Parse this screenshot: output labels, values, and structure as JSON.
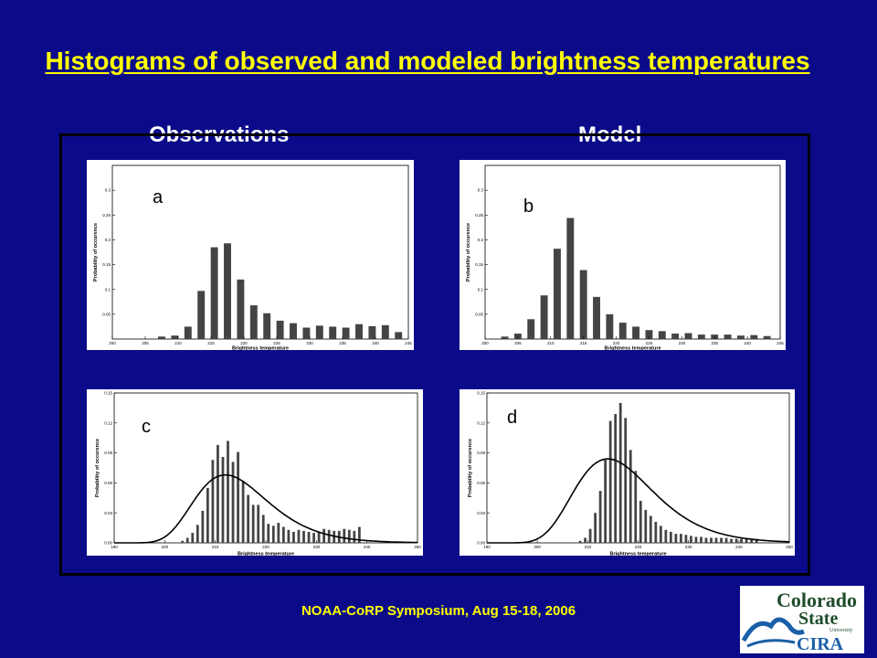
{
  "slide": {
    "title": "Histograms of observed and modeled brightness temperatures",
    "col_left": "Observations",
    "col_right": "Model",
    "footer": "NOAA-CoRP Symposium, Aug 15-18, 2006",
    "colors": {
      "background": "#0b0b8a",
      "title": "#ffff00",
      "bar": "#444444"
    }
  },
  "logo": {
    "line1": "Colorado",
    "line2": "State",
    "line3": "University",
    "line4": "CIRA"
  },
  "chart_data": [
    {
      "type": "bar",
      "label": "a",
      "xlabel": "Brightness temperature",
      "ylabel": "Probability of occurence",
      "xlim": [
        200,
        245
      ],
      "ylim": [
        0,
        0.35
      ],
      "xticks": [
        200,
        205,
        210,
        215,
        220,
        225,
        230,
        235,
        240,
        245
      ],
      "yticks": [
        0.05,
        0.1,
        0.15,
        0.2,
        0.25,
        0.3
      ],
      "x": [
        207.5,
        209.5,
        211.5,
        213.5,
        215.5,
        217.5,
        219.5,
        221.5,
        223.5,
        225.5,
        227.5,
        229.5,
        231.5,
        233.5,
        235.5,
        237.5,
        239.5,
        241.5,
        243.5
      ],
      "values": [
        0.005,
        0.007,
        0.025,
        0.097,
        0.185,
        0.193,
        0.12,
        0.068,
        0.052,
        0.037,
        0.032,
        0.023,
        0.027,
        0.025,
        0.023,
        0.03,
        0.026,
        0.028,
        0.014
      ]
    },
    {
      "type": "bar",
      "label": "b",
      "xlabel": "Brightness temperature",
      "ylabel": "Probability of occurence",
      "xlim": [
        200,
        245
      ],
      "ylim": [
        0,
        0.35
      ],
      "xticks": [
        200,
        205,
        210,
        215,
        220,
        225,
        230,
        235,
        240,
        245
      ],
      "yticks": [
        0.05,
        0.1,
        0.15,
        0.2,
        0.25,
        0.3
      ],
      "x": [
        203,
        205,
        207,
        209,
        211,
        213,
        215,
        217,
        219,
        221,
        223,
        225,
        227,
        229,
        231,
        233,
        235,
        237,
        239,
        241,
        243
      ],
      "values": [
        0.005,
        0.011,
        0.04,
        0.088,
        0.182,
        0.244,
        0.139,
        0.085,
        0.05,
        0.033,
        0.025,
        0.018,
        0.016,
        0.011,
        0.012,
        0.009,
        0.009,
        0.009,
        0.007,
        0.008,
        0.006
      ]
    },
    {
      "type": "bar",
      "label": "c",
      "xlabel": "Brightness temperature",
      "ylabel": "Probability of occurence",
      "xlim": [
        190,
        250
      ],
      "ylim": [
        0,
        0.15
      ],
      "xticks": [
        190,
        200,
        210,
        220,
        230,
        240,
        250
      ],
      "yticks": [
        0.0,
        0.03,
        0.06,
        0.09,
        0.12,
        0.15
      ],
      "x": [
        203.5,
        204.5,
        205.5,
        206.5,
        207.5,
        208.5,
        209.5,
        210.5,
        211.5,
        212.5,
        213.5,
        214.5,
        215.5,
        216.5,
        217.5,
        218.5,
        219.5,
        220.5,
        221.5,
        222.5,
        223.5,
        224.5,
        225.5,
        226.5,
        227.5,
        228.5,
        229.5,
        230.5,
        231.5,
        232.5,
        233.5,
        234.5,
        235.5,
        236.5,
        237.5,
        238.5
      ],
      "values": [
        0.002,
        0.005,
        0.01,
        0.018,
        0.032,
        0.055,
        0.083,
        0.098,
        0.086,
        0.102,
        0.081,
        0.091,
        0.062,
        0.048,
        0.038,
        0.038,
        0.028,
        0.019,
        0.017,
        0.02,
        0.016,
        0.013,
        0.011,
        0.013,
        0.012,
        0.011,
        0.01,
        0.011,
        0.014,
        0.013,
        0.012,
        0.012,
        0.014,
        0.013,
        0.012,
        0.016
      ],
      "curve": {
        "type": "lognormal",
        "peak_x": 212,
        "peak_y": 0.068
      }
    },
    {
      "type": "bar",
      "label": "d",
      "xlabel": "Brightness temperature",
      "ylabel": "Probability of occurence",
      "xlim": [
        190,
        250
      ],
      "ylim": [
        0,
        0.15
      ],
      "xticks": [
        190,
        200,
        210,
        220,
        230,
        240,
        250
      ],
      "yticks": [
        0.0,
        0.03,
        0.06,
        0.09,
        0.12,
        0.15
      ],
      "x": [
        208.5,
        209.5,
        210.5,
        211.5,
        212.5,
        213.5,
        214.5,
        215.5,
        216.5,
        217.5,
        218.5,
        219.5,
        220.5,
        221.5,
        222.5,
        223.5,
        224.5,
        225.5,
        226.5,
        227.5,
        228.5,
        229.5,
        230.5,
        231.5,
        232.5,
        233.5,
        234.5,
        235.5,
        236.5,
        237.5,
        238.5,
        239.5,
        240.5,
        241.5,
        242.5,
        243.5
      ],
      "values": [
        0.002,
        0.005,
        0.014,
        0.03,
        0.052,
        0.083,
        0.122,
        0.129,
        0.14,
        0.125,
        0.093,
        0.072,
        0.042,
        0.033,
        0.027,
        0.021,
        0.017,
        0.013,
        0.011,
        0.009,
        0.009,
        0.008,
        0.007,
        0.006,
        0.006,
        0.005,
        0.005,
        0.005,
        0.005,
        0.005,
        0.004,
        0.004,
        0.004,
        0.004,
        0.004,
        0.004
      ],
      "curve": {
        "type": "lognormal",
        "peak_x": 214,
        "peak_y": 0.084
      }
    }
  ]
}
